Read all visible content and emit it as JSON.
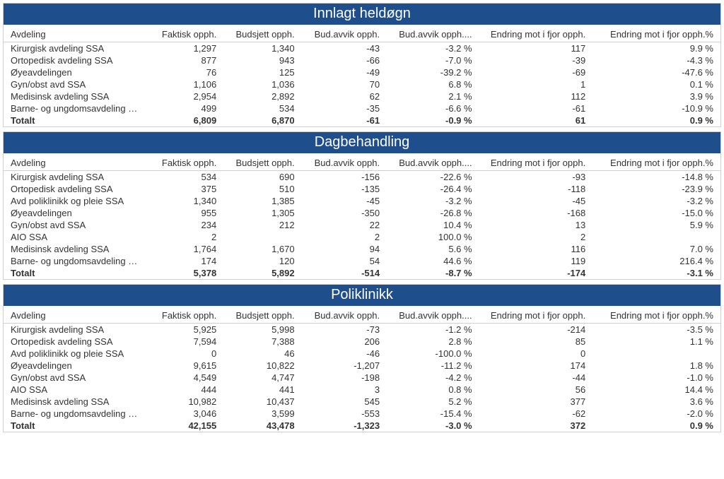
{
  "colors": {
    "header_bg": "#1f4e8c",
    "header_text": "#ffffff",
    "border": "#cfcfcf",
    "text": "#333333",
    "background": "#ffffff"
  },
  "columns": [
    "Avdeling",
    "Faktisk opph.",
    "Budsjett opph.",
    "Bud.avvik opph.",
    "Bud.avvik opph....",
    "Endring mot i fjor opph.",
    "Endring mot i fjor opph.%"
  ],
  "sections": [
    {
      "title": "Innlagt heldøgn",
      "rows": [
        [
          "Kirurgisk avdeling SSA",
          "1,297",
          "1,340",
          "-43",
          "-3.2 %",
          "117",
          "9.9 %"
        ],
        [
          "Ortopedisk avdeling SSA",
          "877",
          "943",
          "-66",
          "-7.0 %",
          "-39",
          "-4.3 %"
        ],
        [
          "Øyeavdelingen",
          "76",
          "125",
          "-49",
          "-39.2 %",
          "-69",
          "-47.6 %"
        ],
        [
          "Gyn/obst avd SSA",
          "1,106",
          "1,036",
          "70",
          "6.8 %",
          "1",
          "0.1 %"
        ],
        [
          "Medisinsk avdeling SSA",
          "2,954",
          "2,892",
          "62",
          "2.1 %",
          "112",
          "3.9 %"
        ],
        [
          "Barne- og ungdomsavdeling SSA",
          "499",
          "534",
          "-35",
          "-6.6 %",
          "-61",
          "-10.9 %"
        ]
      ],
      "total": [
        "Totalt",
        "6,809",
        "6,870",
        "-61",
        "-0.9 %",
        "61",
        "0.9 %"
      ]
    },
    {
      "title": "Dagbehandling",
      "rows": [
        [
          "Kirurgisk avdeling SSA",
          "534",
          "690",
          "-156",
          "-22.6 %",
          "-93",
          "-14.8 %"
        ],
        [
          "Ortopedisk avdeling SSA",
          "375",
          "510",
          "-135",
          "-26.4 %",
          "-118",
          "-23.9 %"
        ],
        [
          "Avd poliklinikk og pleie SSA",
          "1,340",
          "1,385",
          "-45",
          "-3.2 %",
          "-45",
          "-3.2 %"
        ],
        [
          "Øyeavdelingen",
          "955",
          "1,305",
          "-350",
          "-26.8 %",
          "-168",
          "-15.0 %"
        ],
        [
          "Gyn/obst avd SSA",
          "234",
          "212",
          "22",
          "10.4 %",
          "13",
          "5.9 %"
        ],
        [
          "AIO SSA",
          "2",
          "",
          "2",
          "100.0 %",
          "2",
          ""
        ],
        [
          "Medisinsk avdeling SSA",
          "1,764",
          "1,670",
          "94",
          "5.6 %",
          "116",
          "7.0 %"
        ],
        [
          "Barne- og ungdomsavdeling SSA",
          "174",
          "120",
          "54",
          "44.6 %",
          "119",
          "216.4 %"
        ]
      ],
      "total": [
        "Totalt",
        "5,378",
        "5,892",
        "-514",
        "-8.7 %",
        "-174",
        "-3.1 %"
      ]
    },
    {
      "title": "Poliklinikk",
      "rows": [
        [
          "Kirurgisk avdeling SSA",
          "5,925",
          "5,998",
          "-73",
          "-1.2 %",
          "-214",
          "-3.5 %"
        ],
        [
          "Ortopedisk avdeling SSA",
          "7,594",
          "7,388",
          "206",
          "2.8 %",
          "85",
          "1.1 %"
        ],
        [
          "Avd poliklinikk og pleie SSA",
          "0",
          "46",
          "-46",
          "-100.0 %",
          "0",
          ""
        ],
        [
          "Øyeavdelingen",
          "9,615",
          "10,822",
          "-1,207",
          "-11.2 %",
          "174",
          "1.8 %"
        ],
        [
          "Gyn/obst avd SSA",
          "4,549",
          "4,747",
          "-198",
          "-4.2 %",
          "-44",
          "-1.0 %"
        ],
        [
          "AIO SSA",
          "444",
          "441",
          "3",
          "0.8 %",
          "56",
          "14.4 %"
        ],
        [
          "Medisinsk avdeling SSA",
          "10,982",
          "10,437",
          "545",
          "5.2 %",
          "377",
          "3.6 %"
        ],
        [
          "Barne- og ungdomsavdeling SSA",
          "3,046",
          "3,599",
          "-553",
          "-15.4 %",
          "-62",
          "-2.0 %"
        ]
      ],
      "total": [
        "Totalt",
        "42,155",
        "43,478",
        "-1,323",
        "-3.0 %",
        "372",
        "0.9 %"
      ]
    }
  ]
}
